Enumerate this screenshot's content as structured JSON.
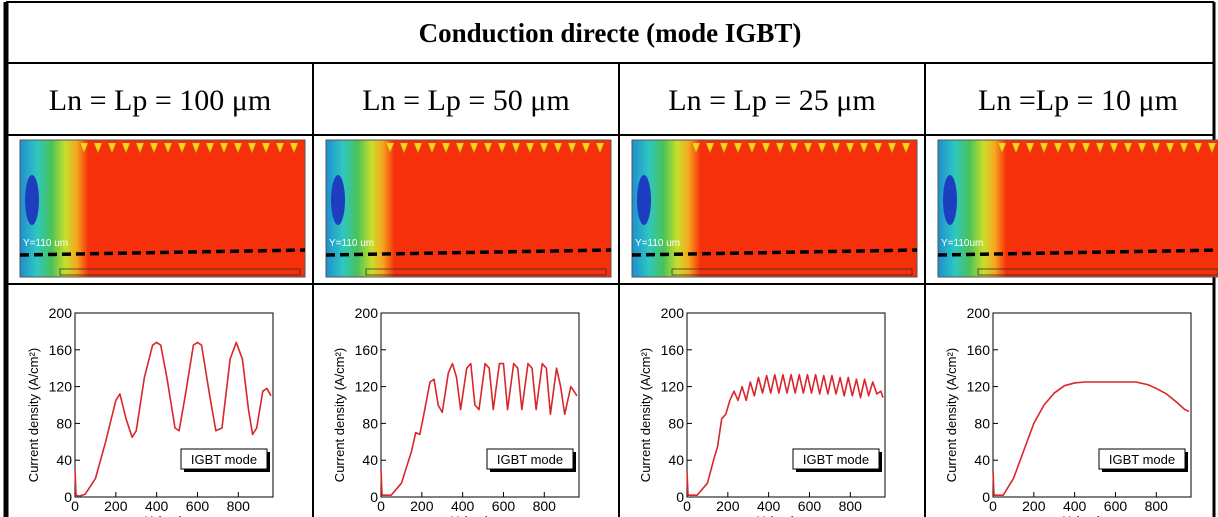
{
  "title": "Conduction directe (mode IGBT)",
  "column_labels": [
    "Ln = Lp = 100 μm",
    "Ln = Lp = 50 μm",
    "Ln = Lp = 25 μm",
    "Ln =Lp = 10 μm"
  ],
  "image_labels": [
    "Y=110 um",
    "Y=110 um",
    "Y=110 um",
    "Y=110um"
  ],
  "chart_data": [
    {
      "type": "line",
      "xlabel": "X (um)",
      "ylabel": "Current density (A/cm²)",
      "legend": "IGBT mode",
      "color": "#d9262b",
      "xlim": [
        0,
        970
      ],
      "ylim": [
        0,
        200
      ],
      "xticks": [
        0,
        200,
        400,
        600,
        800
      ],
      "yticks": [
        0,
        40,
        80,
        120,
        160,
        200
      ],
      "x": [
        0,
        5,
        20,
        50,
        100,
        150,
        200,
        220,
        250,
        280,
        300,
        340,
        380,
        400,
        420,
        450,
        490,
        510,
        540,
        580,
        600,
        620,
        660,
        690,
        720,
        760,
        790,
        820,
        850,
        870,
        890,
        920,
        940,
        960
      ],
      "values": [
        30,
        2,
        1,
        3,
        20,
        60,
        105,
        112,
        85,
        65,
        72,
        130,
        165,
        168,
        165,
        130,
        75,
        72,
        110,
        165,
        168,
        165,
        110,
        72,
        75,
        150,
        168,
        150,
        95,
        68,
        75,
        115,
        118,
        110
      ]
    },
    {
      "type": "line",
      "xlabel": "X (um)",
      "ylabel": "Current density (A/cm²)",
      "legend": "IGBT mode",
      "color": "#d9262b",
      "xlim": [
        0,
        970
      ],
      "ylim": [
        0,
        200
      ],
      "xticks": [
        0,
        200,
        400,
        600,
        800
      ],
      "yticks": [
        0,
        40,
        80,
        120,
        160,
        200
      ],
      "x": [
        0,
        5,
        50,
        100,
        150,
        170,
        190,
        210,
        240,
        260,
        280,
        300,
        330,
        350,
        370,
        390,
        420,
        440,
        460,
        480,
        510,
        530,
        550,
        580,
        600,
        620,
        650,
        670,
        690,
        720,
        740,
        760,
        790,
        810,
        830,
        860,
        880,
        900,
        930,
        960
      ],
      "values": [
        30,
        2,
        2,
        15,
        50,
        70,
        68,
        90,
        125,
        128,
        100,
        92,
        135,
        145,
        130,
        95,
        140,
        145,
        100,
        95,
        145,
        140,
        95,
        145,
        145,
        95,
        145,
        140,
        95,
        145,
        140,
        95,
        145,
        140,
        90,
        140,
        120,
        90,
        120,
        110
      ]
    },
    {
      "type": "line",
      "xlabel": "X (um)",
      "ylabel": "Current density (A/cm²)",
      "legend": "IGBT mode",
      "color": "#d9262b",
      "xlim": [
        0,
        970
      ],
      "ylim": [
        0,
        200
      ],
      "xticks": [
        0,
        200,
        400,
        600,
        800
      ],
      "yticks": [
        0,
        40,
        80,
        120,
        160,
        200
      ],
      "x": [
        0,
        5,
        50,
        100,
        130,
        150,
        170,
        190,
        210,
        230,
        250,
        270,
        290,
        310,
        330,
        350,
        370,
        390,
        410,
        430,
        450,
        470,
        490,
        510,
        530,
        550,
        570,
        590,
        610,
        630,
        650,
        670,
        690,
        710,
        730,
        750,
        770,
        790,
        810,
        830,
        850,
        870,
        890,
        910,
        930,
        950,
        960
      ],
      "values": [
        28,
        2,
        2,
        15,
        40,
        55,
        85,
        90,
        105,
        115,
        105,
        120,
        105,
        125,
        110,
        130,
        113,
        132,
        113,
        133,
        113,
        133,
        113,
        133,
        113,
        133,
        113,
        133,
        113,
        133,
        112,
        132,
        112,
        132,
        112,
        130,
        110,
        130,
        110,
        128,
        108,
        128,
        110,
        125,
        112,
        115,
        108
      ]
    },
    {
      "type": "line",
      "xlabel": "X (um)",
      "ylabel": "Current density (A/cm²)",
      "legend": "IGBT mode",
      "color": "#d9262b",
      "xlim": [
        0,
        970
      ],
      "ylim": [
        0,
        200
      ],
      "xticks": [
        0,
        200,
        400,
        600,
        800
      ],
      "yticks": [
        0,
        40,
        80,
        120,
        160,
        200
      ],
      "x": [
        0,
        5,
        50,
        100,
        150,
        200,
        250,
        300,
        350,
        400,
        450,
        500,
        600,
        700,
        760,
        800,
        850,
        900,
        940,
        960
      ],
      "values": [
        28,
        2,
        2,
        20,
        50,
        80,
        100,
        113,
        121,
        124,
        125,
        125,
        125,
        125,
        122,
        118,
        112,
        103,
        95,
        93
      ]
    }
  ]
}
